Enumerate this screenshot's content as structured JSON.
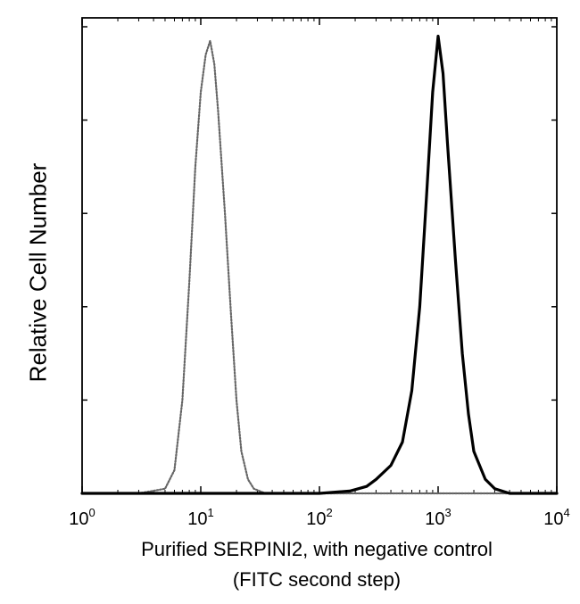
{
  "chart_data": {
    "type": "line",
    "title": "",
    "xlabel_line1": "Purified SERPINI2, with negative control",
    "xlabel_line2": "(FITC second step)",
    "ylabel": "Relative Cell Number",
    "x_scale": "log",
    "xlim": [
      1,
      10000
    ],
    "ylim": [
      0,
      1.0
    ],
    "x_ticks": [
      {
        "base": "10",
        "exp": "0",
        "value": 1
      },
      {
        "base": "10",
        "exp": "1",
        "value": 10
      },
      {
        "base": "10",
        "exp": "2",
        "value": 100
      },
      {
        "base": "10",
        "exp": "3",
        "value": 1000
      },
      {
        "base": "10",
        "exp": "4",
        "value": 10000
      }
    ],
    "y_ticks": [
      0,
      0.2,
      0.4,
      0.6,
      0.8,
      1.0
    ],
    "grid": false,
    "legend": "none",
    "series": [
      {
        "style": "dotted",
        "color": "#666666",
        "x": [
          1,
          3,
          5,
          6,
          7,
          8,
          9,
          10,
          11,
          12,
          13,
          14,
          16,
          18,
          20,
          22,
          25,
          28,
          35,
          100,
          1000,
          10000
        ],
        "y": [
          0,
          0,
          0.01,
          0.05,
          0.2,
          0.45,
          0.7,
          0.86,
          0.94,
          0.97,
          0.92,
          0.82,
          0.6,
          0.38,
          0.2,
          0.09,
          0.03,
          0.01,
          0,
          0,
          0,
          0
        ]
      },
      {
        "style": "solid",
        "color": "#000000",
        "x": [
          1,
          100,
          180,
          250,
          300,
          400,
          500,
          600,
          700,
          800,
          900,
          1000,
          1100,
          1200,
          1400,
          1600,
          1800,
          2000,
          2500,
          3000,
          4000,
          10000
        ],
        "y": [
          0,
          0,
          0.005,
          0.015,
          0.03,
          0.06,
          0.11,
          0.22,
          0.4,
          0.64,
          0.86,
          0.98,
          0.9,
          0.75,
          0.5,
          0.3,
          0.17,
          0.09,
          0.03,
          0.01,
          0,
          0
        ]
      }
    ]
  }
}
